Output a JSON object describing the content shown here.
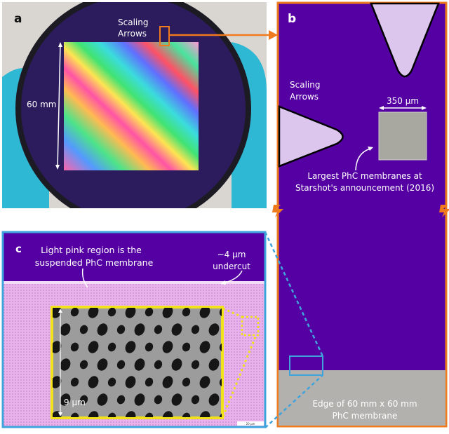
{
  "panel_a": {
    "label": "a",
    "scaling_arrows_line1": "Scaling",
    "scaling_arrows_line2": "Arrows",
    "dimension": "60 mm"
  },
  "panel_b": {
    "label": "b",
    "scaling_arrows_line1": "Scaling",
    "scaling_arrows_line2": "Arrows",
    "width_label": "350 μm",
    "caption_line1": "Largest PhC membranes at",
    "caption_line2": "Starshot's announcement (2016)",
    "edge_line1": "Edge of 60 mm x 60 mm",
    "edge_line2": "PhC membrane"
  },
  "panel_c": {
    "label": "c",
    "caption_line1": "Light pink region is the",
    "caption_line2": "suspended PhC membrane",
    "undercut_line1": "~4 μm",
    "undercut_line2": "undercut",
    "height_label": "9 μm",
    "scale_bar": "20 μm"
  },
  "colors": {
    "frame_b": "#f07a1e",
    "frame_c": "#3fa4dc",
    "inset": "#f2e21a",
    "wafer_purple": "#5500a2",
    "membrane_pink": "#e6a6ea"
  }
}
